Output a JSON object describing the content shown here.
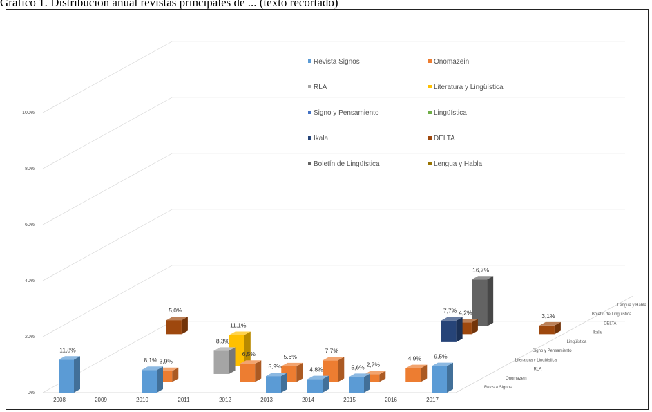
{
  "caption": "Gráfico 1. Distribución anual revistas principales de ... (texto recortado)",
  "chart_data": {
    "type": "bar",
    "subtype": "3d-column",
    "categories": [
      "2008",
      "2009",
      "2010",
      "2011",
      "2012",
      "2013",
      "2014",
      "2015",
      "2016",
      "2017"
    ],
    "y_ticks": [
      "0%",
      "20%",
      "40%",
      "60%",
      "80%",
      "100%"
    ],
    "ylim": [
      0,
      100
    ],
    "grid": true,
    "legend_position": "top-center",
    "series": [
      {
        "name": "Revista Signos",
        "color": "#5b9bd5",
        "values": [
          11.8,
          null,
          8.1,
          null,
          null,
          5.9,
          4.8,
          5.6,
          null,
          9.5
        ],
        "labels": [
          "11,8%",
          "",
          "8,1%",
          "",
          "",
          "5,9%",
          "4,8%",
          "5,6%",
          "",
          "9,5%"
        ]
      },
      {
        "name": "Onomazein",
        "color": "#ed7d31",
        "values": [
          null,
          null,
          3.9,
          null,
          6.5,
          5.6,
          7.7,
          2.7,
          4.9,
          null
        ],
        "labels": [
          "",
          "",
          "3,9%",
          "",
          "6,5%",
          "5,6%",
          "7,7%",
          "2,7%",
          "4,9%",
          ""
        ]
      },
      {
        "name": "RLA",
        "color": "#a5a5a5",
        "values": [
          null,
          null,
          null,
          8.3,
          null,
          null,
          null,
          null,
          null,
          null
        ],
        "labels": [
          "",
          "",
          "",
          "8,3%",
          "",
          "",
          "",
          "",
          "",
          ""
        ]
      },
      {
        "name": "Literatura y Lingüística",
        "color": "#ffc000",
        "values": [
          null,
          null,
          null,
          11.1,
          null,
          null,
          null,
          null,
          null,
          null
        ],
        "labels": [
          "",
          "",
          "",
          "11,1%",
          "",
          "",
          "",
          "",
          "",
          ""
        ]
      },
      {
        "name": "Signo y Pensamiento",
        "color": "#4472c4",
        "values": [
          null,
          null,
          null,
          null,
          null,
          null,
          null,
          null,
          null,
          null
        ],
        "labels": [
          "",
          "",
          "",
          "",
          "",
          "",
          "",
          "",
          "",
          ""
        ]
      },
      {
        "name": "Lingüística",
        "color": "#70ad47",
        "values": [
          null,
          null,
          null,
          null,
          null,
          null,
          null,
          null,
          null,
          null
        ],
        "labels": [
          "",
          "",
          "",
          "",
          "",
          "",
          "",
          "",
          "",
          ""
        ]
      },
      {
        "name": "Ikala",
        "color": "#264478",
        "values": [
          null,
          null,
          null,
          null,
          null,
          null,
          null,
          7.7,
          null,
          null
        ],
        "labels": [
          "",
          "",
          "",
          "",
          "",
          "",
          "",
          "7,7%",
          "",
          ""
        ]
      },
      {
        "name": "DELTA",
        "color": "#9e480e",
        "values": [
          5.0,
          null,
          null,
          null,
          null,
          null,
          null,
          4.2,
          null,
          3.1
        ],
        "labels": [
          "5,0%",
          "",
          "",
          "",
          "",
          "",
          "",
          "4,2%",
          "",
          "3,1%"
        ]
      },
      {
        "name": "Boletín de Lingüística",
        "color": "#636363",
        "values": [
          null,
          null,
          null,
          null,
          null,
          null,
          null,
          16.7,
          null,
          null
        ],
        "labels": [
          "",
          "",
          "",
          "",
          "",
          "",
          "",
          "16,7%",
          "",
          ""
        ]
      },
      {
        "name": "Lengua y Habla",
        "color": "#997300",
        "values": [
          null,
          null,
          null,
          null,
          null,
          null,
          null,
          null,
          null,
          null
        ],
        "labels": [
          "",
          "",
          "",
          "",
          "",
          "",
          "",
          "",
          "",
          ""
        ]
      }
    ]
  }
}
